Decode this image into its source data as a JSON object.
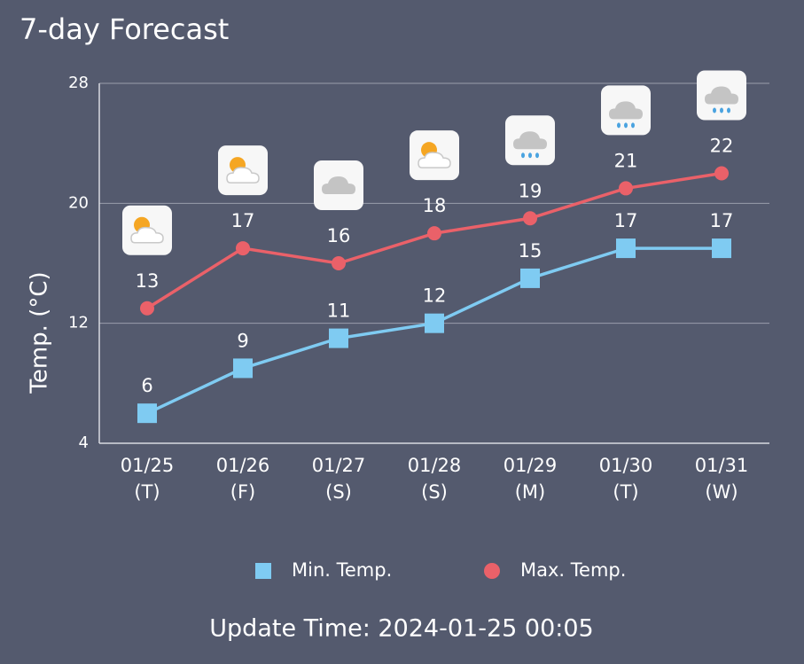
{
  "chart_data": {
    "type": "line",
    "title": "7-day Forecast",
    "y_label": "Temp. (°C)",
    "categories": [
      [
        "01/25",
        "(T)"
      ],
      [
        "01/26",
        "(F)"
      ],
      [
        "01/27",
        "(S)"
      ],
      [
        "01/28",
        "(S)"
      ],
      [
        "01/29",
        "(M)"
      ],
      [
        "01/30",
        "(T)"
      ],
      [
        "01/31",
        "(W)"
      ]
    ],
    "series": [
      {
        "name": "Min. Temp.",
        "color": "#7fcbf2",
        "marker": "square",
        "values": [
          6,
          9,
          11,
          12,
          15,
          17,
          17
        ]
      },
      {
        "name": "Max. Temp.",
        "color": "#ea6169",
        "marker": "circle",
        "values": [
          13,
          17,
          16,
          18,
          19,
          21,
          22
        ]
      }
    ],
    "ylim": [
      4,
      28
    ],
    "yticks": [
      4,
      12,
      20,
      28
    ],
    "grid": true,
    "footer": "Update Time: 2024-01-25 00:05"
  }
}
